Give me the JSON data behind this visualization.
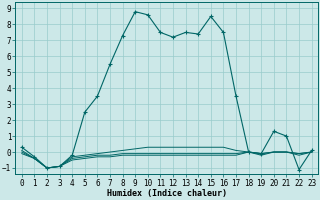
{
  "xlabel": "Humidex (Indice chaleur)",
  "xlim": [
    -0.5,
    23.5
  ],
  "ylim": [
    -1.4,
    9.4
  ],
  "xticks": [
    0,
    1,
    2,
    3,
    4,
    5,
    6,
    7,
    8,
    9,
    10,
    11,
    12,
    13,
    14,
    15,
    16,
    17,
    18,
    19,
    20,
    21,
    22,
    23
  ],
  "yticks": [
    -1,
    0,
    1,
    2,
    3,
    4,
    5,
    6,
    7,
    8,
    9
  ],
  "bg_color": "#cce8e8",
  "grid_color": "#99cccc",
  "line_color": "#006666",
  "line1_x": [
    0,
    1,
    2,
    3,
    4,
    5,
    6,
    7,
    8,
    9,
    10,
    11,
    12,
    13,
    14,
    15,
    16,
    17,
    18,
    19,
    20,
    21,
    22,
    23
  ],
  "line1_y": [
    0.3,
    -0.3,
    -1.0,
    -0.9,
    -0.2,
    2.5,
    3.5,
    5.5,
    7.3,
    8.8,
    8.6,
    7.5,
    7.2,
    7.5,
    7.4,
    8.5,
    7.5,
    3.5,
    0.0,
    -0.1,
    1.3,
    1.0,
    -1.1,
    0.1
  ],
  "line2_x": [
    0,
    1,
    2,
    3,
    4,
    5,
    6,
    7,
    8,
    9,
    10,
    11,
    12,
    13,
    14,
    15,
    16,
    17,
    18,
    19,
    20,
    21,
    22,
    23
  ],
  "line2_y": [
    0.1,
    -0.4,
    -1.0,
    -0.9,
    -0.3,
    -0.2,
    -0.1,
    0.0,
    0.1,
    0.2,
    0.3,
    0.3,
    0.3,
    0.3,
    0.3,
    0.3,
    0.3,
    0.1,
    0.0,
    -0.1,
    0.0,
    0.0,
    -0.1,
    0.0
  ],
  "line3_x": [
    0,
    1,
    2,
    3,
    4,
    5,
    6,
    7,
    8,
    9,
    10,
    11,
    12,
    13,
    14,
    15,
    16,
    17,
    18,
    19,
    20,
    21,
    22,
    23
  ],
  "line3_y": [
    0.0,
    -0.4,
    -1.0,
    -0.9,
    -0.4,
    -0.3,
    -0.2,
    -0.2,
    -0.1,
    -0.1,
    -0.1,
    -0.1,
    -0.1,
    -0.1,
    -0.1,
    -0.1,
    -0.1,
    -0.1,
    0.0,
    -0.1,
    0.0,
    0.0,
    -0.1,
    0.0
  ],
  "line4_x": [
    0,
    1,
    2,
    3,
    4,
    5,
    6,
    7,
    8,
    9,
    10,
    11,
    12,
    13,
    14,
    15,
    16,
    17,
    18,
    19,
    20,
    21,
    22,
    23
  ],
  "line4_y": [
    -0.1,
    -0.4,
    -1.0,
    -0.9,
    -0.5,
    -0.4,
    -0.3,
    -0.3,
    -0.2,
    -0.2,
    -0.2,
    -0.2,
    -0.2,
    -0.2,
    -0.2,
    -0.2,
    -0.2,
    -0.2,
    0.0,
    -0.2,
    0.0,
    0.0,
    -0.2,
    0.0
  ]
}
